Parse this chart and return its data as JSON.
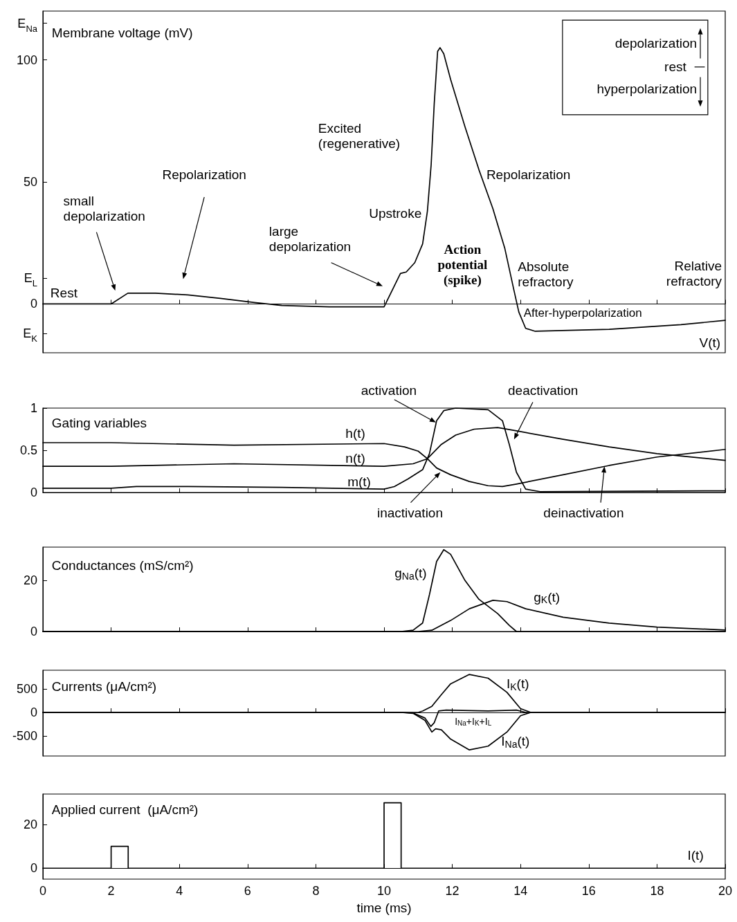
{
  "chart_data": [
    {
      "type": "line",
      "title": "Membrane voltage (mV)",
      "xlim": [
        0,
        20
      ],
      "xticks": [
        0,
        2,
        4,
        6,
        8,
        10,
        12,
        14,
        16,
        18,
        20
      ],
      "ylim": [
        -20,
        120
      ],
      "yticks": [
        {
          "value": -12,
          "label": "E$_{K}$"
        },
        0,
        {
          "value": 10.6,
          "label": "E$_{L}$"
        },
        50,
        100,
        {
          "value": 115,
          "label": "E$_{Na}$"
        }
      ],
      "tick_labels": "y",
      "annotations": [
        "Rest",
        "small\ndepolarization",
        "Repolarization",
        "large\ndepolarization",
        "Upstroke",
        "Excited\n(regenerative)",
        "Action\npotential\n(spike)",
        "Repolarization",
        "Absolute\nrefractory",
        "Relative\nrefractory",
        "After-hyperpolarization",
        "depolarization",
        "rest",
        "hyperpolarization"
      ],
      "series": [
        {
          "name": "V(t)",
          "color": "#000000",
          "x": [
            0,
            2,
            2.49,
            3.3,
            4.25,
            5.2,
            6.2,
            7.0,
            8.4,
            10,
            10.48,
            10.65,
            10.9,
            11.13,
            11.27,
            11.38,
            11.47,
            11.57,
            11.64,
            11.75,
            11.95,
            12.37,
            12.78,
            13.19,
            13.54,
            13.81,
            13.95,
            14.15,
            14.43,
            16.6,
            18.7,
            20
          ],
          "values": [
            0,
            0,
            4.4,
            4.4,
            3.7,
            2.3,
            0.6,
            -0.6,
            -1.2,
            -1.2,
            12.5,
            13.1,
            16.9,
            24.6,
            38,
            57,
            82,
            103.5,
            105,
            102.5,
            92,
            72.7,
            55,
            39,
            22.7,
            5.4,
            -3.3,
            -10,
            -11.2,
            -10.4,
            -8.5,
            -6.7
          ]
        }
      ]
    },
    {
      "type": "line",
      "title": "Gating variables",
      "xlim": [
        0,
        20
      ],
      "xticks": [
        0,
        2,
        4,
        6,
        8,
        10,
        12,
        14,
        16,
        18,
        20
      ],
      "ylim": [
        0,
        1
      ],
      "yticks": [
        0,
        0.5,
        1
      ],
      "tick_labels": "y",
      "annotations": [
        {
          "text": "activation",
          "x": 11.52,
          "y": 0.83
        },
        "deactivation",
        {
          "text": "inactivation",
          "x": 11.65,
          "y": 0.24
        },
        {
          "text": "deinactivation",
          "x": 16.46,
          "y": 0.31
        }
      ],
      "series": [
        {
          "name": "h(t)",
          "color": "#000000",
          "x": [
            0,
            2,
            5.6,
            10,
            10.6,
            11,
            11.27,
            11.54,
            11.95,
            12.5,
            13.05,
            13.47,
            13.88,
            15.25,
            16.6,
            18,
            20
          ],
          "values": [
            0.59,
            0.59,
            0.56,
            0.58,
            0.54,
            0.49,
            0.4,
            0.29,
            0.21,
            0.13,
            0.08,
            0.07,
            0.1,
            0.21,
            0.32,
            0.42,
            0.51
          ]
        },
        {
          "name": "n(t)",
          "color": "#000000",
          "x": [
            0,
            2,
            5.6,
            10,
            10.85,
            11.27,
            11.68,
            12.1,
            12.64,
            13.33,
            13.88,
            15.25,
            16.6,
            18,
            20
          ],
          "values": [
            0.31,
            0.31,
            0.34,
            0.31,
            0.34,
            0.4,
            0.57,
            0.68,
            0.75,
            0.77,
            0.73,
            0.63,
            0.54,
            0.46,
            0.38
          ]
        },
        {
          "name": "m(t)",
          "color": "#000000",
          "x": [
            0,
            2,
            2.74,
            4.25,
            7,
            10,
            10.3,
            10.7,
            11.13,
            11.33,
            11.54,
            11.75,
            12.1,
            13.05,
            13.47,
            13.67,
            13.88,
            14.15,
            14.57,
            20
          ],
          "values": [
            0.05,
            0.05,
            0.07,
            0.07,
            0.06,
            0.04,
            0.07,
            0.16,
            0.27,
            0.46,
            0.85,
            0.97,
            1.0,
            0.98,
            0.85,
            0.57,
            0.24,
            0.04,
            0.01,
            0.02
          ]
        }
      ]
    },
    {
      "type": "line",
      "title": "Conductances (mS/cm²)",
      "xlim": [
        0,
        20
      ],
      "xticks": [
        0,
        2,
        4,
        6,
        8,
        10,
        12,
        14,
        16,
        18,
        20
      ],
      "ylim": [
        0,
        33
      ],
      "yticks": [
        0,
        20
      ],
      "tick_labels": "y",
      "series": [
        {
          "name": "g$_{Na}$(t)",
          "color": "#000000",
          "x": [
            0,
            10.5,
            10.85,
            11.13,
            11.33,
            11.54,
            11.75,
            11.95,
            12.37,
            12.78,
            13.33,
            13.67,
            13.88,
            20
          ],
          "values": [
            0,
            0,
            0.5,
            3.3,
            14.4,
            27.4,
            32,
            30.2,
            20,
            12.6,
            7,
            2.4,
            0,
            0
          ]
        },
        {
          "name": "g$_{K}$(t)",
          "color": "#000000",
          "x": [
            0,
            11,
            11.4,
            11.95,
            12.5,
            13.19,
            13.6,
            14.15,
            15.25,
            16.6,
            18,
            20
          ],
          "values": [
            0,
            0,
            0.5,
            4.3,
            8.9,
            12.2,
            11.7,
            8.9,
            5.6,
            3.3,
            1.7,
            0.6
          ]
        }
      ]
    },
    {
      "type": "line",
      "title": "Currents (μA/cm²)",
      "xlim": [
        0,
        20
      ],
      "xticks": [
        0,
        2,
        4,
        6,
        8,
        10,
        12,
        14,
        16,
        18,
        20
      ],
      "ylim": [
        -930,
        900
      ],
      "yticks": [
        -500,
        0,
        500
      ],
      "tick_labels": "y",
      "series": [
        {
          "name": "I$_{K}$(t)",
          "color": "#000000",
          "x": [
            0,
            11,
            11.13,
            11.4,
            11.68,
            11.95,
            12.5,
            13.05,
            13.6,
            14.0,
            14.3,
            20
          ],
          "values": [
            0,
            0,
            30,
            130,
            380,
            610,
            810,
            730,
            430,
            80,
            0,
            0
          ]
        },
        {
          "name": "I$_{Na}$+I$_{K}$+I$_{L}$",
          "color": "#000000",
          "x": [
            0,
            10.5,
            10.85,
            11.2,
            11.37,
            11.47,
            11.6,
            11.82,
            13.05,
            13.88,
            14.15,
            20
          ],
          "values": [
            0,
            0,
            -10,
            -120,
            -300,
            -220,
            30,
            50,
            30,
            50,
            0,
            0
          ]
        },
        {
          "name": "I$_{Na}$(t)",
          "color": "#000000",
          "x": [
            0,
            10.5,
            10.85,
            11.2,
            11.4,
            11.51,
            11.68,
            11.95,
            12.5,
            13.05,
            13.6,
            14.0,
            14.3,
            20
          ],
          "values": [
            0,
            0,
            -20,
            -170,
            -420,
            -350,
            -370,
            -570,
            -800,
            -720,
            -420,
            -70,
            0,
            0
          ]
        }
      ]
    },
    {
      "type": "line",
      "title": "Applied current  (μA/cm²)",
      "xlabel": "time (ms)",
      "xlim": [
        0,
        20
      ],
      "xticks": [
        0,
        2,
        4,
        6,
        8,
        10,
        12,
        14,
        16,
        18,
        20
      ],
      "ylim": [
        -5,
        34
      ],
      "yticks": [
        0,
        20
      ],
      "series": [
        {
          "name": "I(t)",
          "color": "#000000",
          "x": [
            0,
            2,
            2,
            2.5,
            2.5,
            10,
            10,
            10.5,
            10.5,
            20
          ],
          "values": [
            0,
            0,
            10,
            10,
            0,
            0,
            30,
            30,
            0,
            0
          ]
        }
      ]
    }
  ]
}
